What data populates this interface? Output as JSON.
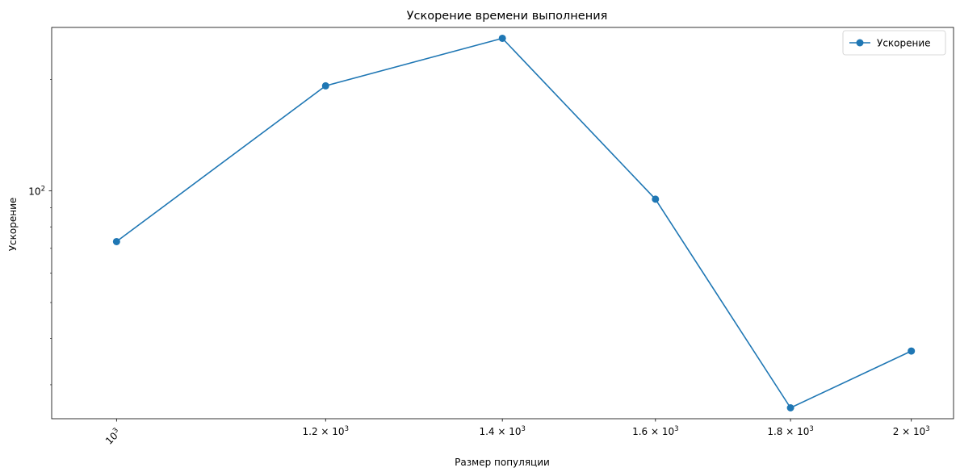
{
  "chart_data": {
    "type": "line",
    "title": "Ускорение времени выполнения",
    "xlabel": "Размер популяции",
    "ylabel": "Ускорение",
    "x_scale": "log",
    "y_scale": "log",
    "x": [
      1000,
      1200,
      1400,
      1600,
      1800,
      2000
    ],
    "series": [
      {
        "name": "Ускорение",
        "color": "#1f77b4",
        "marker": "circle",
        "values": [
          73,
          192,
          258,
          95,
          26,
          37
        ]
      }
    ],
    "x_ticks": [
      {
        "value": 1000,
        "base": "10",
        "exp": "3"
      },
      {
        "value": 1200,
        "base": "1.2 × 10",
        "exp": "3"
      },
      {
        "value": 1400,
        "base": "1.4 × 10",
        "exp": "3"
      },
      {
        "value": 1600,
        "base": "1.6 × 10",
        "exp": "3"
      },
      {
        "value": 1800,
        "base": "1.8 × 10",
        "exp": "3"
      },
      {
        "value": 2000,
        "base": "2 × 10",
        "exp": "3"
      }
    ],
    "y_ticks": [
      {
        "value": 100,
        "base": "10",
        "exp": "2"
      }
    ],
    "legend_position": "top-right",
    "grid": false
  }
}
